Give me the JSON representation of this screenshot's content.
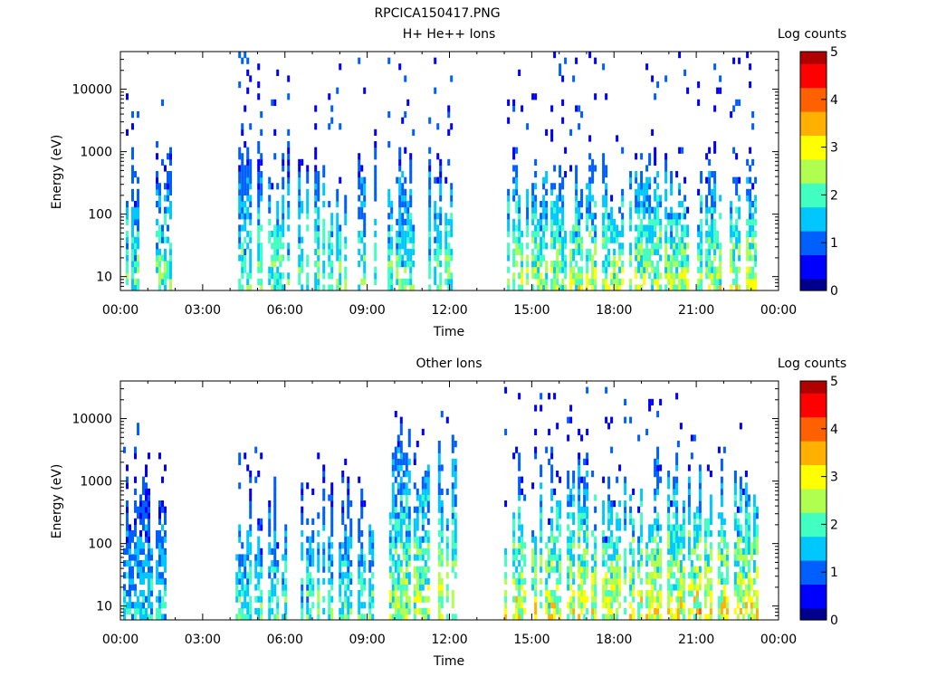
{
  "figure_title": "RPCICA150417.PNG",
  "colormap": [
    "#00008c",
    "#0000ff",
    "#0060ff",
    "#00c8ff",
    "#40ffc0",
    "#b0ff50",
    "#ffff00",
    "#ffb000",
    "#ff6000",
    "#ff0000",
    "#b00000"
  ],
  "chart_data": [
    {
      "type": "heatmap",
      "title": "H+ He++ Ions",
      "xlabel": "Time",
      "ylabel": "Energy (eV)",
      "colorbar_label": "Log counts",
      "x_ticks": [
        "00:00",
        "03:00",
        "06:00",
        "09:00",
        "12:00",
        "15:00",
        "18:00",
        "21:00",
        "00:00"
      ],
      "y_ticks": [
        "10",
        "100",
        "1000",
        "10000"
      ],
      "colorbar_ticks": [
        "0",
        "1",
        "2",
        "3",
        "4",
        "5"
      ],
      "x_range_hours": [
        0,
        24
      ],
      "y_scale": "log",
      "y_range_eV": [
        6,
        40000
      ],
      "color_range": [
        0,
        5
      ],
      "data_segments": [
        {
          "start_hour": 0.1,
          "end_hour": 1.85,
          "max_energy_eV": 1500,
          "peak_log_counts": 2.8,
          "scatter_max_eV": 8000
        },
        {
          "start_hour": 4.1,
          "end_hour": 12.2,
          "max_energy_eV": 1500,
          "peak_log_counts": 2.8,
          "scatter_max_eV": 40000
        },
        {
          "start_hour": 14.1,
          "end_hour": 23.2,
          "max_energy_eV": 1000,
          "peak_log_counts": 3.3,
          "scatter_max_eV": 40000
        }
      ]
    },
    {
      "type": "heatmap",
      "title": "Other Ions",
      "xlabel": "Time",
      "ylabel": "Energy (eV)",
      "colorbar_label": "Log counts",
      "x_ticks": [
        "00:00",
        "03:00",
        "06:00",
        "09:00",
        "12:00",
        "15:00",
        "18:00",
        "21:00",
        "00:00"
      ],
      "y_ticks": [
        "10",
        "100",
        "1000",
        "10000"
      ],
      "colorbar_ticks": [
        "0",
        "1",
        "2",
        "3",
        "4",
        "5"
      ],
      "x_range_hours": [
        0,
        24
      ],
      "y_scale": "log",
      "y_range_eV": [
        6,
        40000
      ],
      "color_range": [
        0,
        5
      ],
      "data_segments": [
        {
          "start_hour": 0.1,
          "end_hour": 1.9,
          "max_energy_eV": 2000,
          "peak_log_counts": 2.2,
          "scatter_max_eV": 8000
        },
        {
          "start_hour": 4.1,
          "end_hour": 9.7,
          "max_energy_eV": 1500,
          "peak_log_counts": 2.6,
          "scatter_max_eV": 3000
        },
        {
          "start_hour": 9.7,
          "end_hour": 12.2,
          "max_energy_eV": 10000,
          "peak_log_counts": 3.2,
          "scatter_max_eV": 20000
        },
        {
          "start_hour": 14.0,
          "end_hour": 20.3,
          "max_energy_eV": 3000,
          "peak_log_counts": 3.6,
          "scatter_max_eV": 30000
        },
        {
          "start_hour": 20.3,
          "end_hour": 23.2,
          "max_energy_eV": 2000,
          "peak_log_counts": 3.9,
          "scatter_max_eV": 10000
        }
      ]
    }
  ]
}
